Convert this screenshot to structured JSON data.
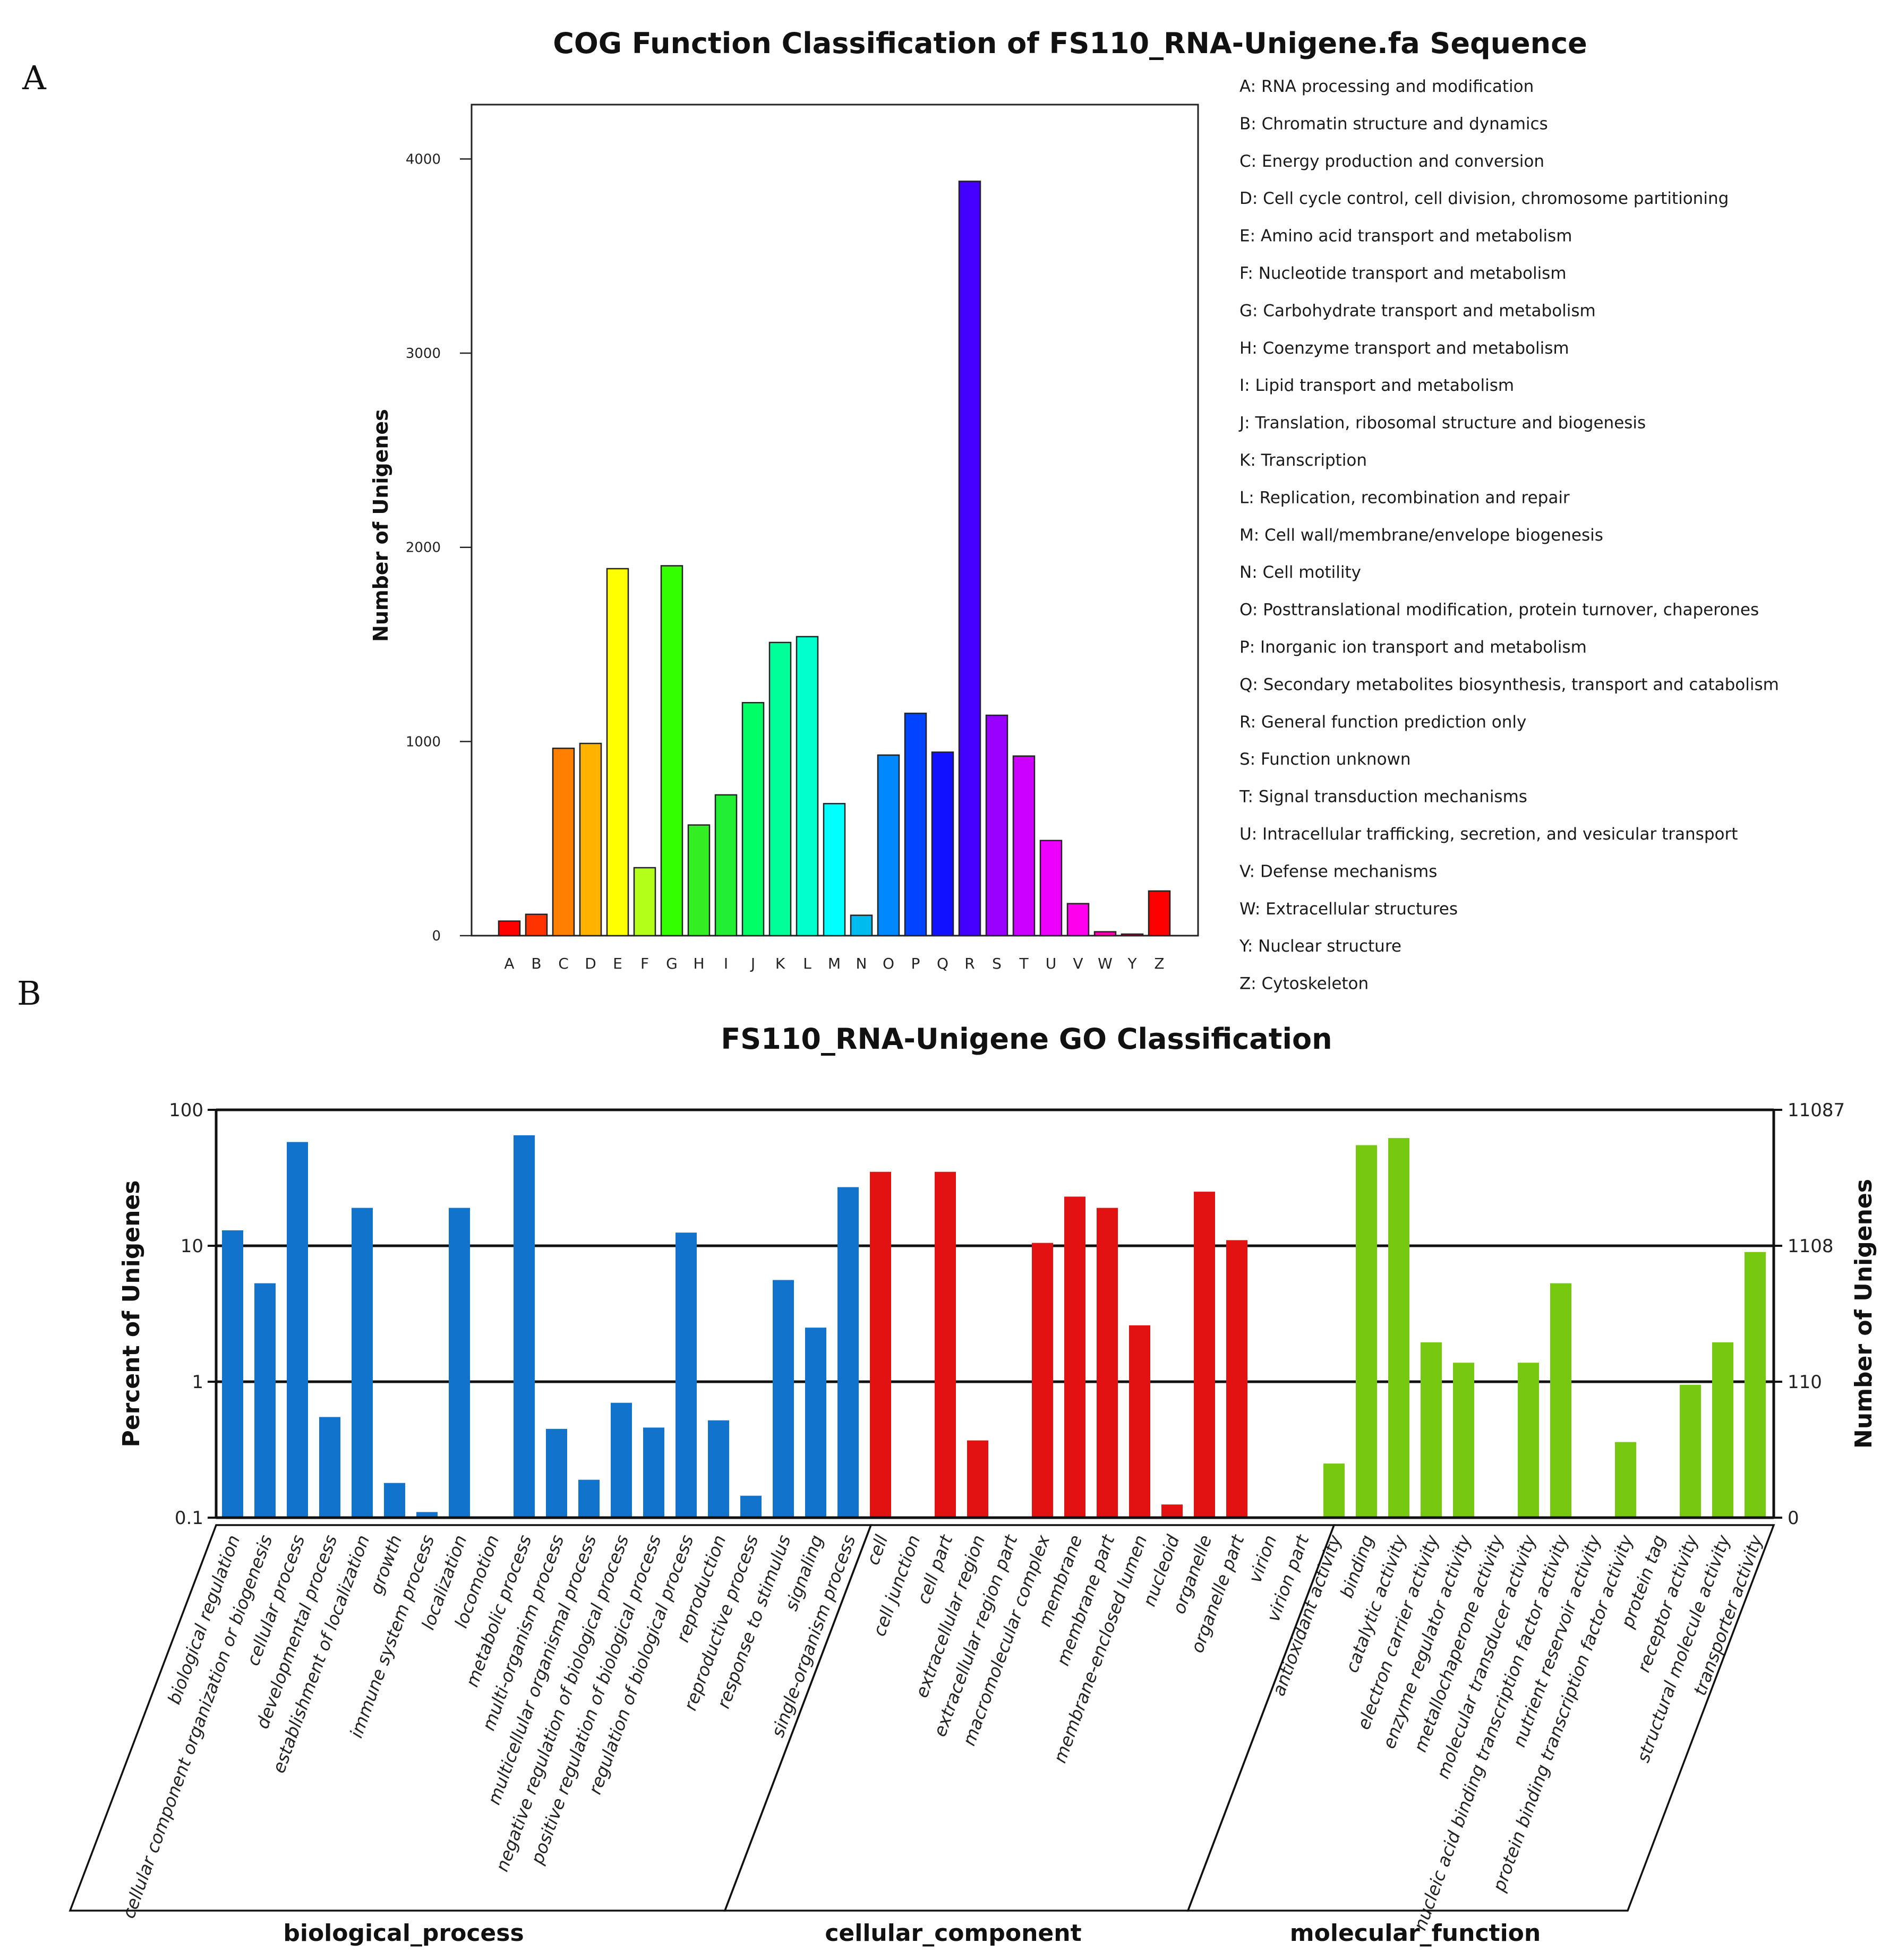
{
  "panels": {
    "a": "A",
    "b": "B"
  },
  "chart_data": [
    {
      "type": "bar",
      "title": "COG Function Classification of FS110_RNA-Unigene.fa Sequence",
      "xlabel": "",
      "ylabel": "Number of Unigenes",
      "ylim": [
        0,
        4280
      ],
      "yticks": [
        0,
        1000,
        2000,
        3000,
        4000
      ],
      "grid": false,
      "legend_position": "right",
      "categories": [
        "A",
        "B",
        "C",
        "D",
        "E",
        "F",
        "G",
        "H",
        "I",
        "J",
        "K",
        "L",
        "M",
        "N",
        "O",
        "P",
        "Q",
        "R",
        "S",
        "T",
        "U",
        "V",
        "W",
        "Y",
        "Z"
      ],
      "values": [
        75,
        110,
        965,
        990,
        1890,
        350,
        1905,
        570,
        725,
        1200,
        1510,
        1540,
        680,
        105,
        930,
        1145,
        945,
        3885,
        1135,
        925,
        490,
        165,
        20,
        8,
        230
      ],
      "colors": [
        "#ff0000",
        "#ff3300",
        "#ff8000",
        "#ffb300",
        "#ffff00",
        "#b3ff1a",
        "#33ff00",
        "#33ee22",
        "#22ee33",
        "#00ff66",
        "#00ff99",
        "#00ffcc",
        "#00ffff",
        "#00bbee",
        "#0088ff",
        "#0044ff",
        "#1111ff",
        "#4400ff",
        "#9900ff",
        "#cc00ff",
        "#ee00ff",
        "#ff00ee",
        "#ff00aa",
        "#ff0066",
        "#ff0000"
      ],
      "legend": [
        "A: RNA processing and modification",
        "B: Chromatin structure and dynamics",
        "C: Energy production and conversion",
        "D: Cell cycle control, cell division, chromosome partitioning",
        "E: Amino acid transport and metabolism",
        "F: Nucleotide transport and metabolism",
        "G: Carbohydrate transport and metabolism",
        "H: Coenzyme transport and metabolism",
        "I: Lipid transport and metabolism",
        "J: Translation, ribosomal structure and biogenesis",
        "K: Transcription",
        "L: Replication, recombination and repair",
        "M: Cell wall/membrane/envelope biogenesis",
        "N: Cell motility",
        "O: Posttranslational modification, protein turnover, chaperones",
        "P: Inorganic ion transport and metabolism",
        "Q: Secondary metabolites biosynthesis, transport and catabolism",
        "R: General function prediction only",
        "S: Function unknown",
        "T: Signal transduction mechanisms",
        "U: Intracellular trafficking, secretion, and vesicular transport",
        "V: Defense mechanisms",
        "W: Extracellular structures",
        "Y: Nuclear structure",
        "Z: Cytoskeleton"
      ]
    },
    {
      "type": "bar",
      "title": "FS110_RNA-Unigene GO Classification",
      "ylabel": "Percent of Unigenes",
      "y2label": "Number of Unigenes",
      "yscale": "log",
      "ylim": [
        0.1,
        100
      ],
      "yticks": [
        "100",
        "10",
        "1",
        "0.1"
      ],
      "yticks_values": [
        100,
        10,
        1,
        0.1
      ],
      "y2ticks": [
        "11087",
        "1108",
        "110",
        "0"
      ],
      "grid": true,
      "categories": [
        "biological regulation",
        "cellular component organization or biogenesis",
        "cellular process",
        "developmental process",
        "establishment of localization",
        "growth",
        "immune system process",
        "localization",
        "locomotion",
        "metabolic process",
        "multi-organism process",
        "multicellular organismal process",
        "negative regulation of biological process",
        "positive regulation of biological process",
        "regulation of biological process",
        "reproduction",
        "reproductive process",
        "response to stimulus",
        "signaling",
        "single-organism process",
        "cell",
        "cell junction",
        "cell part",
        "extracellular region",
        "extracellular region part",
        "macromolecular complex",
        "membrane",
        "membrane part",
        "membrane-enclosed lumen",
        "nucleoid",
        "organelle",
        "organelle part",
        "virion",
        "virion part",
        "antioxidant activity",
        "binding",
        "catalytic activity",
        "electron carrier activity",
        "enzyme regulator activity",
        "metallochaperone activity",
        "molecular transducer activity",
        "nucleic acid binding transcription factor activity",
        "nutrient reservoir activity",
        "protein binding transcription factor activity",
        "protein tag",
        "receptor activity",
        "structural molecule activity",
        "transporter activity"
      ],
      "values": [
        13,
        5.3,
        58,
        0.55,
        19,
        0.18,
        0.11,
        19,
        0,
        65,
        0.45,
        0.19,
        0.7,
        0.46,
        12.5,
        0.52,
        0.145,
        5.6,
        2.5,
        27,
        35,
        0,
        35,
        0.37,
        0,
        10.5,
        23,
        19,
        2.6,
        0.125,
        25,
        11,
        0,
        0,
        0.25,
        55,
        62,
        1.95,
        1.38,
        0,
        1.38,
        5.3,
        0,
        0.36,
        0,
        0.95,
        1.95,
        9
      ],
      "groups": [
        {
          "name": "biological_process",
          "start": 0,
          "end": 19,
          "color": "#1273cc"
        },
        {
          "name": "cellular_component",
          "start": 20,
          "end": 33,
          "color": "#e31212"
        },
        {
          "name": "molecular_function",
          "start": 34,
          "end": 47,
          "color": "#76c811"
        }
      ]
    }
  ]
}
